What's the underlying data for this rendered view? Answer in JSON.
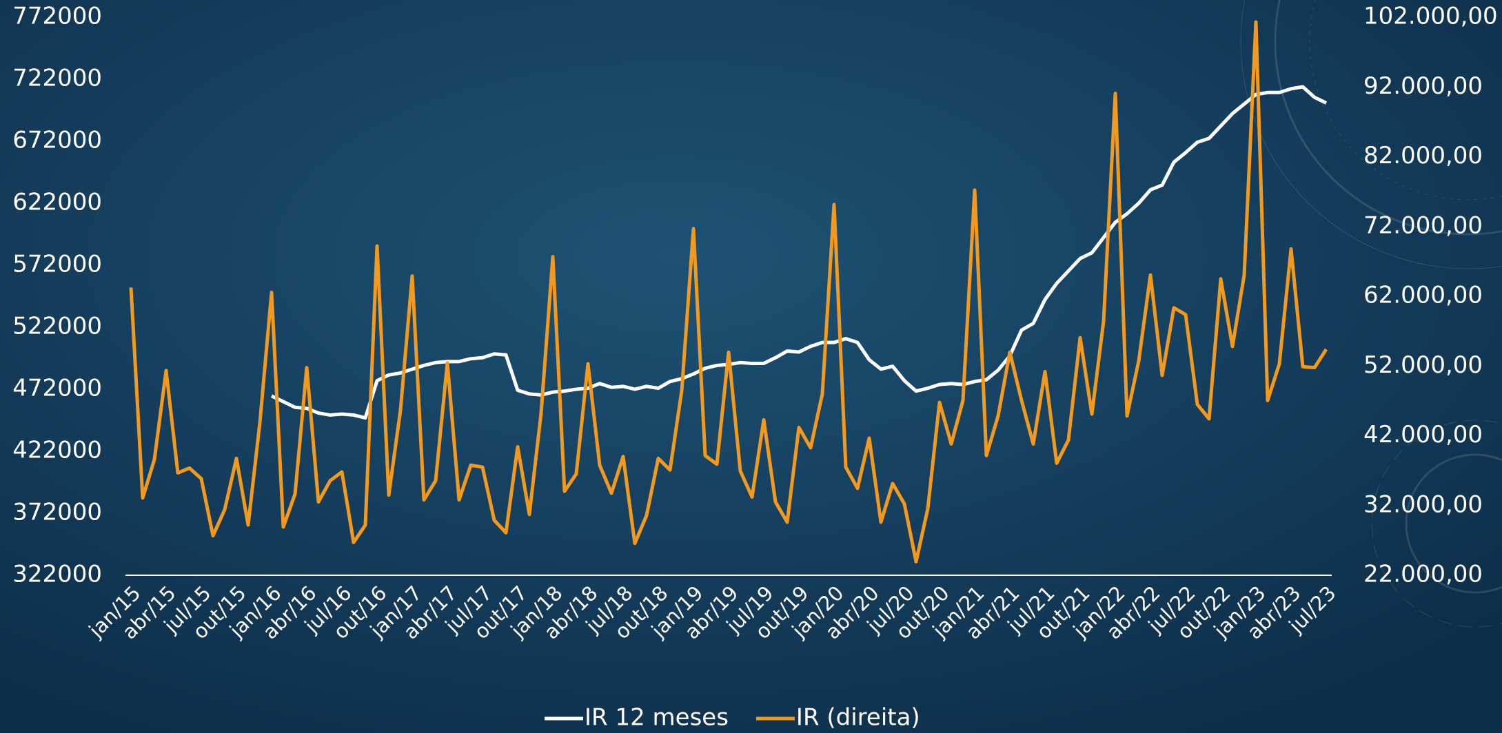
{
  "chart_data": {
    "type": "line",
    "categories": [
      "jan/15",
      null,
      null,
      "abr/15",
      null,
      null,
      "jul/15",
      null,
      null,
      "out/15",
      null,
      null,
      "jan/16",
      null,
      null,
      "abr/16",
      null,
      null,
      "jul/16",
      null,
      null,
      "out/16",
      null,
      null,
      "jan/17",
      null,
      null,
      "abr/17",
      null,
      null,
      "jul/17",
      null,
      null,
      "out/17",
      null,
      null,
      "jan/18",
      null,
      null,
      "abr/18",
      null,
      null,
      "jul/18",
      null,
      null,
      "out/18",
      null,
      null,
      "jan/19",
      null,
      null,
      "abr/19",
      null,
      null,
      "jul/19",
      null,
      null,
      "out/19",
      null,
      null,
      "jan/20",
      null,
      null,
      "abr/20",
      null,
      null,
      "jul/20",
      null,
      null,
      "out/20",
      null,
      null,
      "jan/21",
      null,
      null,
      "abr/21",
      null,
      null,
      "jul/21",
      null,
      null,
      "out/21",
      null,
      null,
      "jan/22",
      null,
      null,
      "abr/22",
      null,
      null,
      "jul/22",
      null,
      null,
      "out/22",
      null,
      null,
      "jan/23",
      null,
      null,
      "abr/23",
      null,
      null,
      "jul/23"
    ],
    "series": [
      {
        "name": "IR 12 meses",
        "color": "#ffffff",
        "values": [
          null,
          null,
          null,
          null,
          null,
          null,
          null,
          null,
          null,
          null,
          null,
          null,
          466600,
          462000,
          457400,
          456600,
          452800,
          451200,
          452000,
          451200,
          448900,
          478900,
          483500,
          485100,
          488200,
          491200,
          493500,
          494300,
          494300,
          496600,
          497400,
          500500,
          499700,
          471200,
          468200,
          467400,
          469700,
          470500,
          472000,
          472800,
          476600,
          473500,
          474300,
          472000,
          474300,
          472800,
          478200,
          480500,
          484300,
          488900,
          491200,
          492000,
          493500,
          492800,
          492800,
          497400,
          502800,
          502000,
          506600,
          509700,
          509700,
          512800,
          509700,
          495800,
          488200,
          490500,
          478900,
          470500,
          472800,
          475800,
          476600,
          475800,
          478200,
          479700,
          487400,
          498900,
          519700,
          525100,
          544300,
          557400,
          567400,
          577400,
          582000,
          594300,
          606600,
          613500,
          622000,
          632800,
          636600,
          655100,
          662800,
          671200,
          674300,
          684300,
          694300,
          702000,
          709700,
          711300,
          711300,
          714300,
          715900,
          707400,
          702800
        ]
      },
      {
        "name": "IR (direita)",
        "color": "#f39a1e",
        "axis": "y2",
        "values": [
          63250,
          33070,
          38600,
          51340,
          36670,
          37360,
          35840,
          27670,
          31410,
          38750,
          29200,
          43870,
          62550,
          28920,
          33630,
          51760,
          32520,
          35560,
          36810,
          26710,
          29200,
          69200,
          33490,
          45670,
          64900,
          32800,
          35560,
          52450,
          32800,
          37780,
          37500,
          29890,
          28090,
          40410,
          30720,
          45250,
          67670,
          34040,
          36530,
          52310,
          37780,
          33760,
          39020,
          26570,
          30580,
          38750,
          37090,
          48440,
          71690,
          39160,
          37920,
          53970,
          36950,
          33210,
          44280,
          32520,
          29610,
          43180,
          40270,
          48020,
          75150,
          37500,
          34460,
          41650,
          29610,
          35150,
          32240,
          23940,
          31550,
          46780,
          40820,
          47050,
          77220,
          39160,
          44840,
          53970,
          47050,
          40820,
          51200,
          38060,
          41380,
          56050,
          45110,
          58400,
          91070,
          44840,
          52730,
          65040,
          50650,
          60340,
          59370,
          46500,
          44420,
          64490,
          54800,
          65040,
          101310,
          47050,
          52310,
          68780,
          51900,
          51760,
          54390
        ]
      }
    ],
    "ylim": [
      322000,
      772000
    ],
    "yticks": [
      322000,
      372000,
      422000,
      472000,
      522000,
      572000,
      622000,
      672000,
      722000,
      772000
    ],
    "y2lim": [
      22000,
      102000
    ],
    "y2ticks": [
      {
        "value": 22000,
        "label": "22.000,00"
      },
      {
        "value": 32000,
        "label": "32.000,00"
      },
      {
        "value": 42000,
        "label": "42.000,00"
      },
      {
        "value": 52000,
        "label": "52.000,00"
      },
      {
        "value": 62000,
        "label": "62.000,00"
      },
      {
        "value": 72000,
        "label": "72.000,00"
      },
      {
        "value": 82000,
        "label": "82.000,00"
      },
      {
        "value": 92000,
        "label": "92.000,00"
      },
      {
        "value": 102000,
        "label": "102.000,00"
      }
    ],
    "grid": false,
    "legend": "bottom"
  }
}
